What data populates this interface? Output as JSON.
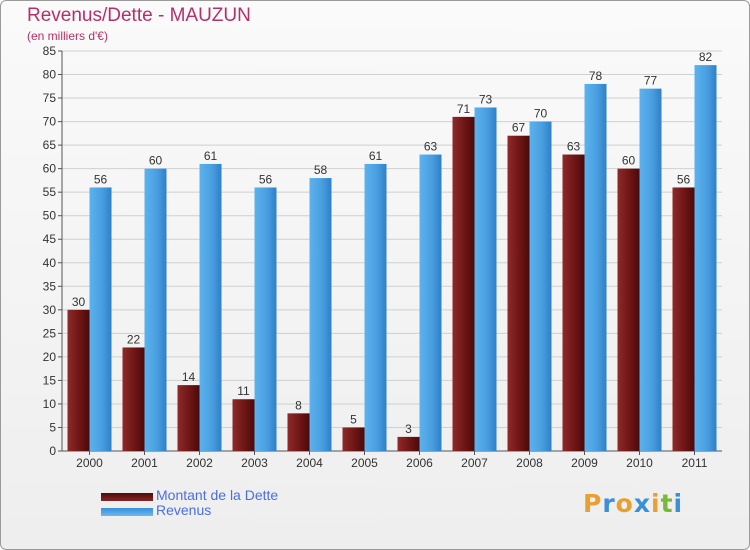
{
  "chart_data": {
    "type": "bar",
    "title": "Revenus/Dette - MAUZUN",
    "subtitle": "(en milliers d'€)",
    "categories": [
      "2000",
      "2001",
      "2002",
      "2003",
      "2004",
      "2005",
      "2006",
      "2007",
      "2008",
      "2009",
      "2010",
      "2011"
    ],
    "series": [
      {
        "name": "Montant de la Dette",
        "color": "#7a1c1c",
        "values": [
          30,
          22,
          14,
          11,
          8,
          5,
          3,
          71,
          67,
          63,
          60,
          56
        ]
      },
      {
        "name": "Revenus",
        "color": "#4a9fe0",
        "values": [
          56,
          60,
          61,
          56,
          58,
          61,
          63,
          73,
          70,
          78,
          77,
          82
        ]
      }
    ],
    "ylim": [
      0,
      85
    ],
    "yticks": [
      0,
      5,
      10,
      15,
      20,
      25,
      30,
      35,
      40,
      45,
      50,
      55,
      60,
      65,
      70,
      75,
      80,
      85
    ],
    "grid": true,
    "legend_position": "bottom-left"
  },
  "brand": {
    "text": "Proxiti",
    "letter_colors": [
      "#e8a030",
      "#3a8fd8",
      "#e8a030",
      "#3a8fd8",
      "#e8a030",
      "#7ab83a",
      "#3a8fd8"
    ]
  }
}
